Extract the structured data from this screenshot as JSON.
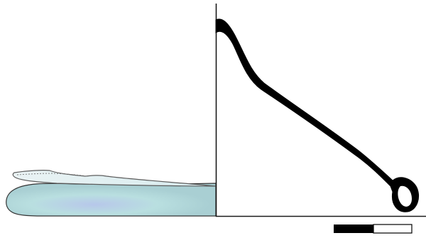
{
  "figure": {
    "description_visible_text": [],
    "colors": {
      "background": "#ffffff",
      "body_fill_light": "#b9dfe0",
      "body_fill_dark": "#a9cfd3",
      "body_shading": "#b7c7ea",
      "outline": "#000000",
      "stroke_gray": "#5d5d5d",
      "flap_fill": "#e8f1f3",
      "scale_dark": "#000000",
      "scale_light": "#ffffff"
    },
    "scale_bar": {
      "segments": 2,
      "filled_fraction": 0.5
    }
  }
}
